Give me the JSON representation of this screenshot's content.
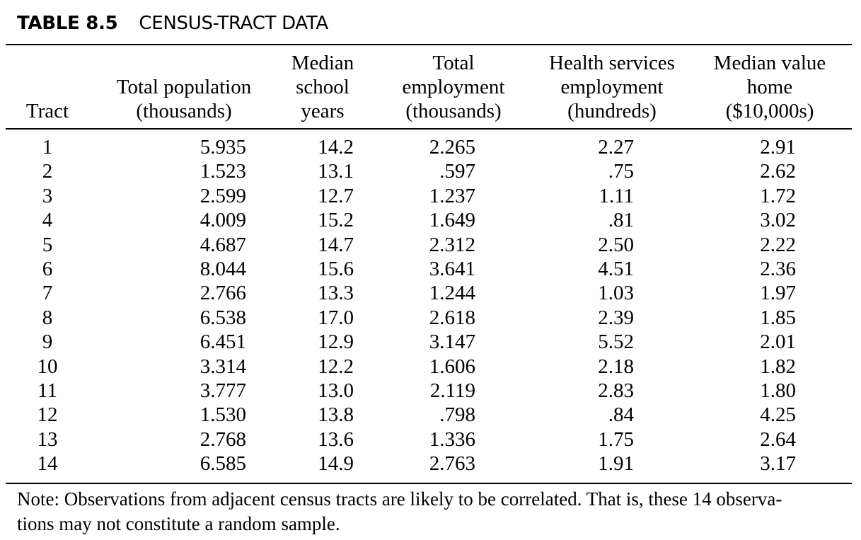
{
  "table": {
    "label": "TABLE 8.5",
    "title": "CENSUS-TRACT DATA",
    "headers": {
      "tract": [
        "Tract"
      ],
      "population": [
        "Total population",
        "(thousands)"
      ],
      "school": [
        "Median",
        "school",
        "years"
      ],
      "employment": [
        "Total",
        "employment",
        "(thousands)"
      ],
      "health": [
        "Health services",
        "employment",
        "(hundreds)"
      ],
      "home": [
        "Median value",
        "home",
        "($10,000s)"
      ]
    },
    "rows": [
      {
        "tract": "1",
        "population": "5.935",
        "school": "14.2",
        "employment": "2.265",
        "health": "2.27",
        "home": "2.91"
      },
      {
        "tract": "2",
        "population": "1.523",
        "school": "13.1",
        "employment": ".597",
        "health": ".75",
        "home": "2.62"
      },
      {
        "tract": "3",
        "population": "2.599",
        "school": "12.7",
        "employment": "1.237",
        "health": "1.11",
        "home": "1.72"
      },
      {
        "tract": "4",
        "population": "4.009",
        "school": "15.2",
        "employment": "1.649",
        "health": ".81",
        "home": "3.02"
      },
      {
        "tract": "5",
        "population": "4.687",
        "school": "14.7",
        "employment": "2.312",
        "health": "2.50",
        "home": "2.22"
      },
      {
        "tract": "6",
        "population": "8.044",
        "school": "15.6",
        "employment": "3.641",
        "health": "4.51",
        "home": "2.36"
      },
      {
        "tract": "7",
        "population": "2.766",
        "school": "13.3",
        "employment": "1.244",
        "health": "1.03",
        "home": "1.97"
      },
      {
        "tract": "8",
        "population": "6.538",
        "school": "17.0",
        "employment": "2.618",
        "health": "2.39",
        "home": "1.85"
      },
      {
        "tract": "9",
        "population": "6.451",
        "school": "12.9",
        "employment": "3.147",
        "health": "5.52",
        "home": "2.01"
      },
      {
        "tract": "10",
        "population": "3.314",
        "school": "12.2",
        "employment": "1.606",
        "health": "2.18",
        "home": "1.82"
      },
      {
        "tract": "11",
        "population": "3.777",
        "school": "13.0",
        "employment": "2.119",
        "health": "2.83",
        "home": "1.80"
      },
      {
        "tract": "12",
        "population": "1.530",
        "school": "13.8",
        "employment": ".798",
        "health": ".84",
        "home": "4.25"
      },
      {
        "tract": "13",
        "population": "2.768",
        "school": "13.6",
        "employment": "1.336",
        "health": "1.75",
        "home": "2.64"
      },
      {
        "tract": "14",
        "population": "6.585",
        "school": "14.9",
        "employment": "2.763",
        "health": "1.91",
        "home": "3.17"
      }
    ],
    "note_lines": [
      "Note:  Observations from adjacent census tracts are likely to be correlated.  That is, these 14 observa-",
      "tions may not constitute a random sample."
    ]
  }
}
